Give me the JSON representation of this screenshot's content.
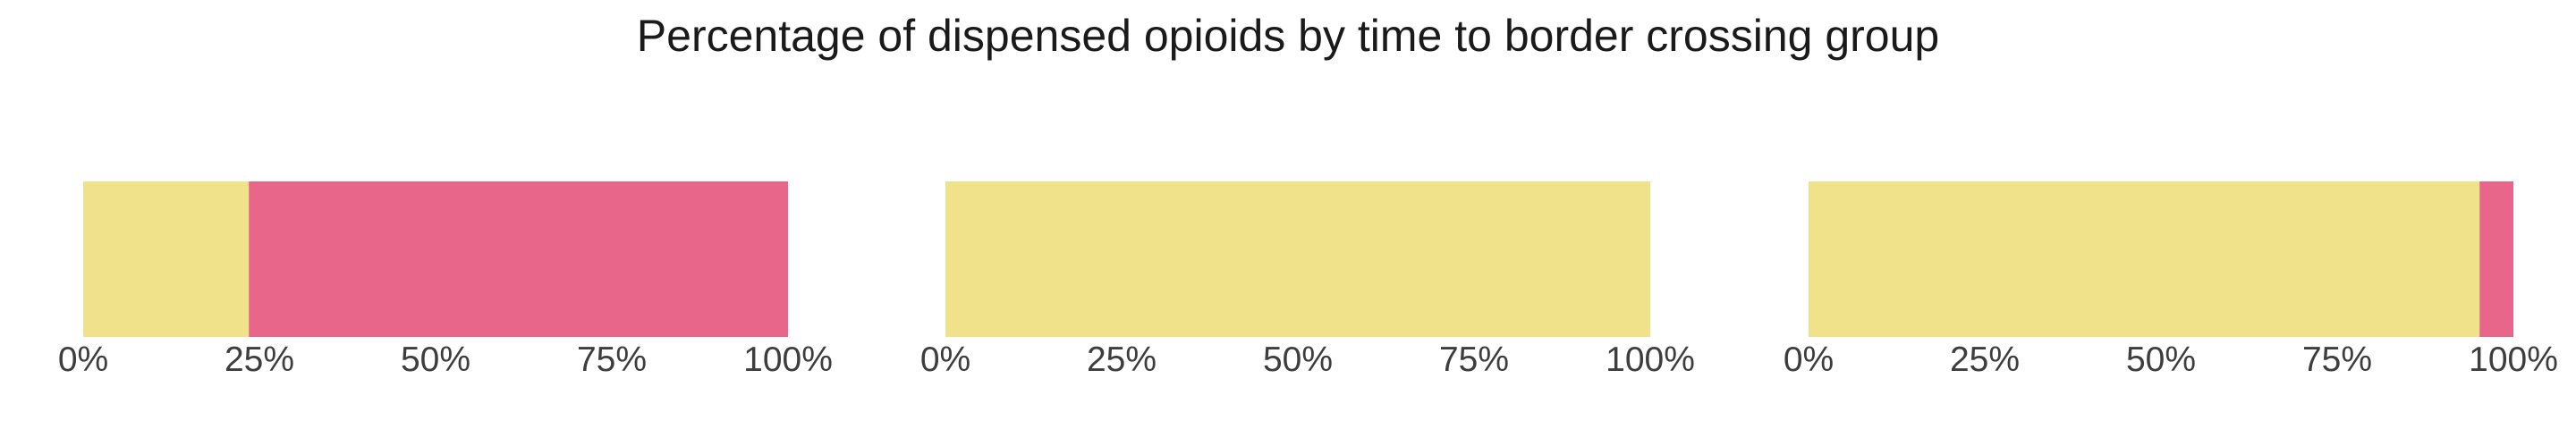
{
  "chart_data": {
    "type": "bar",
    "orientation": "horizontal-stacked",
    "title": "Percentage of dispensed opioids by time to border crossing group",
    "xlim": [
      0,
      100
    ],
    "x_ticks": [
      "0%",
      "25%",
      "50%",
      "75%",
      "100%"
    ],
    "grid": false,
    "legend": "none",
    "colors": {
      "segment_1": "#f0e28a",
      "segment_2": "#e8668a"
    },
    "panels": [
      {
        "segments": [
          {
            "value": 23.5,
            "color": "#f0e28a"
          },
          {
            "value": 76.5,
            "color": "#e8668a"
          }
        ]
      },
      {
        "segments": [
          {
            "value": 100,
            "color": "#f0e28a"
          }
        ]
      },
      {
        "segments": [
          {
            "value": 95.2,
            "color": "#f0e28a"
          },
          {
            "value": 4.8,
            "color": "#e8668a"
          }
        ]
      }
    ]
  }
}
